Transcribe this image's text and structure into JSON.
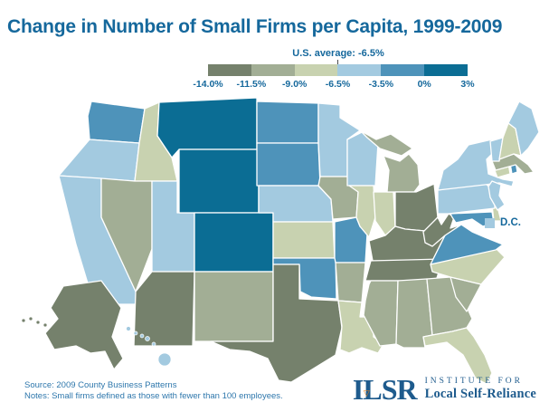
{
  "title": "Change in Number of Small Firms per Capita, 1999-2009",
  "legend": {
    "average_label": "U.S. average: -6.5%",
    "tick_labels": [
      "-14.0%",
      "-11.5%",
      "-9.0%",
      "-6.5%",
      "-3.5%",
      "0%",
      "3%"
    ]
  },
  "dc": {
    "label": "D.C."
  },
  "footer": {
    "source": "Source: 2009 County Business Patterns",
    "notes": "Notes: Small firms defined as those with fewer than 100 employees."
  },
  "logo": {
    "acronym": "ILSR",
    "line1": "INSTITUTE FOR",
    "line2": "Local Self-Reliance"
  },
  "colors": {
    "title_blue": "#15689C",
    "footer_blue": "#2E77AC",
    "logo_navy": "#1E5B8D",
    "logo_orange": "#E8821E"
  },
  "chart_data": {
    "type": "choropleth",
    "title": "Change in Number of Small Firms per Capita, 1999-2009",
    "metric": "Percent change in number of small firms per capita, 1999-2009",
    "us_average_pct": -6.5,
    "legend_boundaries_pct": [
      -14.0,
      -11.5,
      -9.0,
      -6.5,
      -3.5,
      0,
      3
    ],
    "bins": [
      {
        "label": "-14.0% to -11.5%",
        "color": "#75816C"
      },
      {
        "label": "-11.5% to -9.0%",
        "color": "#A2AE95"
      },
      {
        "label": "-9.0% to -6.5%",
        "color": "#C8D2B0"
      },
      {
        "label": "-6.5% to -3.5%",
        "color": "#A3CAE0"
      },
      {
        "label": "-3.5% to 0%",
        "color": "#4E93BA"
      },
      {
        "label": "0% to 3%",
        "color": "#0B6D94"
      }
    ],
    "states": [
      {
        "id": "WA",
        "name": "Washington",
        "bin": 4
      },
      {
        "id": "OR",
        "name": "Oregon",
        "bin": 3
      },
      {
        "id": "CA",
        "name": "California",
        "bin": 3
      },
      {
        "id": "ID",
        "name": "Idaho",
        "bin": 2
      },
      {
        "id": "NV",
        "name": "Nevada",
        "bin": 1
      },
      {
        "id": "UT",
        "name": "Utah",
        "bin": 3
      },
      {
        "id": "AZ",
        "name": "Arizona",
        "bin": 0
      },
      {
        "id": "MT",
        "name": "Montana",
        "bin": 5
      },
      {
        "id": "WY",
        "name": "Wyoming",
        "bin": 5
      },
      {
        "id": "CO",
        "name": "Colorado",
        "bin": 5
      },
      {
        "id": "NM",
        "name": "New Mexico",
        "bin": 1
      },
      {
        "id": "ND",
        "name": "North Dakota",
        "bin": 4
      },
      {
        "id": "SD",
        "name": "South Dakota",
        "bin": 4
      },
      {
        "id": "NE",
        "name": "Nebraska",
        "bin": 3
      },
      {
        "id": "KS",
        "name": "Kansas",
        "bin": 2
      },
      {
        "id": "OK",
        "name": "Oklahoma",
        "bin": 4
      },
      {
        "id": "TX",
        "name": "Texas",
        "bin": 0
      },
      {
        "id": "MN",
        "name": "Minnesota",
        "bin": 3
      },
      {
        "id": "IA",
        "name": "Iowa",
        "bin": 1
      },
      {
        "id": "MO",
        "name": "Missouri",
        "bin": 4
      },
      {
        "id": "AR",
        "name": "Arkansas",
        "bin": 1
      },
      {
        "id": "LA",
        "name": "Louisiana",
        "bin": 2
      },
      {
        "id": "WI",
        "name": "Wisconsin",
        "bin": 3
      },
      {
        "id": "IL",
        "name": "Illinois",
        "bin": 2
      },
      {
        "id": "IN",
        "name": "Indiana",
        "bin": 2
      },
      {
        "id": "MI",
        "name": "Michigan",
        "bin": 1
      },
      {
        "id": "OH",
        "name": "Ohio",
        "bin": 0
      },
      {
        "id": "KY",
        "name": "Kentucky",
        "bin": 0
      },
      {
        "id": "TN",
        "name": "Tennessee",
        "bin": 0
      },
      {
        "id": "MS",
        "name": "Mississippi",
        "bin": 1
      },
      {
        "id": "AL",
        "name": "Alabama",
        "bin": 1
      },
      {
        "id": "GA",
        "name": "Georgia",
        "bin": 1
      },
      {
        "id": "FL",
        "name": "Florida",
        "bin": 2
      },
      {
        "id": "SC",
        "name": "South Carolina",
        "bin": 1
      },
      {
        "id": "NC",
        "name": "North Carolina",
        "bin": 2
      },
      {
        "id": "VA",
        "name": "Virginia",
        "bin": 4
      },
      {
        "id": "WV",
        "name": "West Virginia",
        "bin": 0
      },
      {
        "id": "MD",
        "name": "Maryland",
        "bin": 4
      },
      {
        "id": "DE",
        "name": "Delaware",
        "bin": 2
      },
      {
        "id": "PA",
        "name": "Pennsylvania",
        "bin": 3
      },
      {
        "id": "NY",
        "name": "New York",
        "bin": 3
      },
      {
        "id": "NJ",
        "name": "New Jersey",
        "bin": 3
      },
      {
        "id": "CT",
        "name": "Connecticut",
        "bin": 2
      },
      {
        "id": "RI",
        "name": "Rhode Island",
        "bin": 4
      },
      {
        "id": "MA",
        "name": "Massachusetts",
        "bin": 1
      },
      {
        "id": "VT",
        "name": "Vermont",
        "bin": 3
      },
      {
        "id": "NH",
        "name": "New Hampshire",
        "bin": 2
      },
      {
        "id": "ME",
        "name": "Maine",
        "bin": 3
      },
      {
        "id": "AK",
        "name": "Alaska",
        "bin": 0
      },
      {
        "id": "HI",
        "name": "Hawaii",
        "bin": 3
      },
      {
        "id": "DC",
        "name": "District of Columbia",
        "bin": 3
      }
    ]
  }
}
